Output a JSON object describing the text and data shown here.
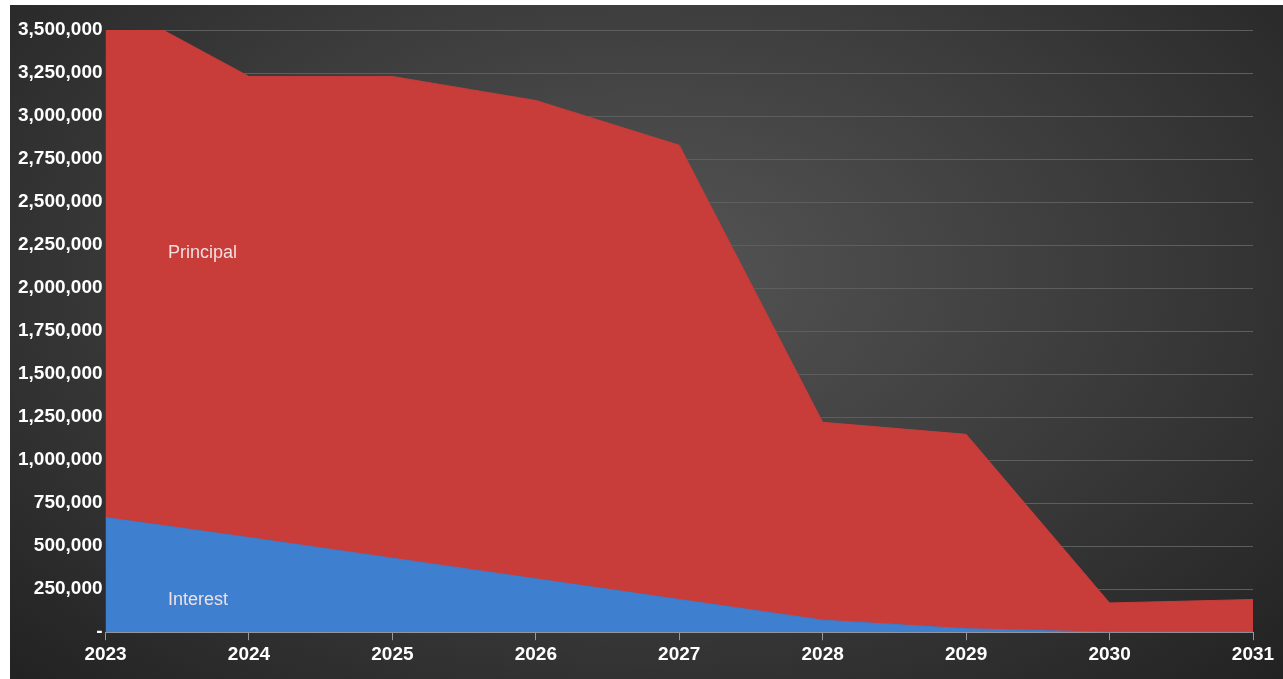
{
  "chart_data": {
    "type": "area",
    "stacked": true,
    "x": [
      2023,
      2023.4,
      2024,
      2025,
      2026,
      2027,
      2028,
      2029,
      2030,
      2031
    ],
    "series": [
      {
        "name": "Interest",
        "color": "#3f7fcf",
        "values": [
          666000,
          620000,
          550000,
          430000,
          310000,
          190000,
          70000,
          20000,
          0,
          0
        ]
      },
      {
        "name": "Principal",
        "color": "#c83c3a",
        "values": [
          2834000,
          2880000,
          2680000,
          2800000,
          2780000,
          2640000,
          1150000,
          1130000,
          170000,
          190000
        ]
      }
    ],
    "xlim": [
      2023,
      2031
    ],
    "xticks": [
      2023,
      2024,
      2025,
      2026,
      2027,
      2028,
      2029,
      2030,
      2031
    ],
    "ylim": [
      0,
      3500000
    ],
    "yticks": [
      {
        "value": 0,
        "label": "-"
      },
      {
        "value": 250000,
        "label": "250,000"
      },
      {
        "value": 500000,
        "label": "500,000"
      },
      {
        "value": 750000,
        "label": "750,000"
      },
      {
        "value": 1000000,
        "label": "1,000,000"
      },
      {
        "value": 1250000,
        "label": "1,250,000"
      },
      {
        "value": 1500000,
        "label": "1,500,000"
      },
      {
        "value": 1750000,
        "label": "1,750,000"
      },
      {
        "value": 2000000,
        "label": "2,000,000"
      },
      {
        "value": 2250000,
        "label": "2,250,000"
      },
      {
        "value": 2500000,
        "label": "2,500,000"
      },
      {
        "value": 2750000,
        "label": "2,750,000"
      },
      {
        "value": 3000000,
        "label": "3,000,000"
      },
      {
        "value": 3250000,
        "label": "3,250,000"
      },
      {
        "value": 3500000,
        "label": "3,500,000"
      }
    ],
    "grid": "y",
    "legend": false
  }
}
